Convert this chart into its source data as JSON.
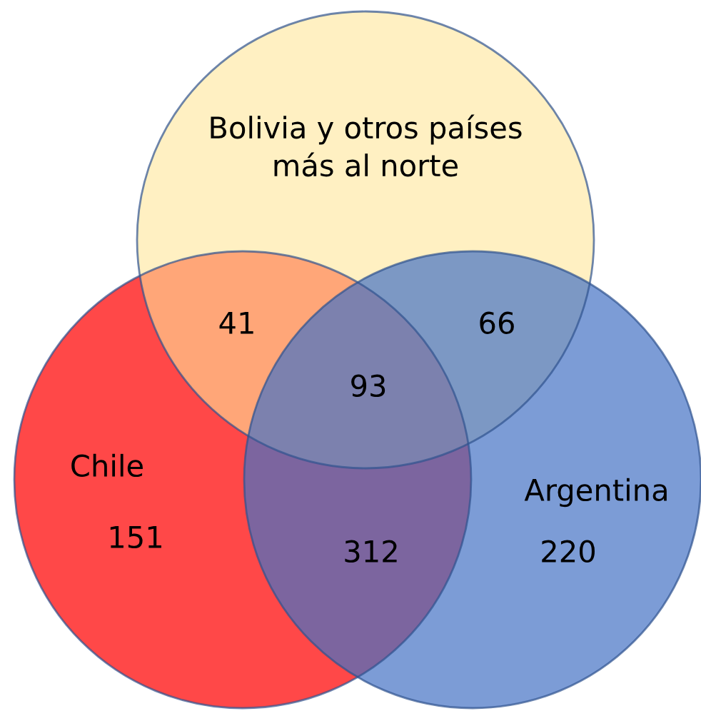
{
  "chart_data": {
    "type": "other",
    "categories": [
      "Bolivia y otros países\nmás al norte",
      "Chile",
      "Argentina"
    ],
    "values": [
      null,
      151,
      220
    ],
    "data_labels": true,
    "colors": [
      "#ffe699",
      "#ff4848",
      "#4472c4"
    ],
    "annotations": [
      "41",
      "66",
      "93",
      "312"
    ]
  }
}
